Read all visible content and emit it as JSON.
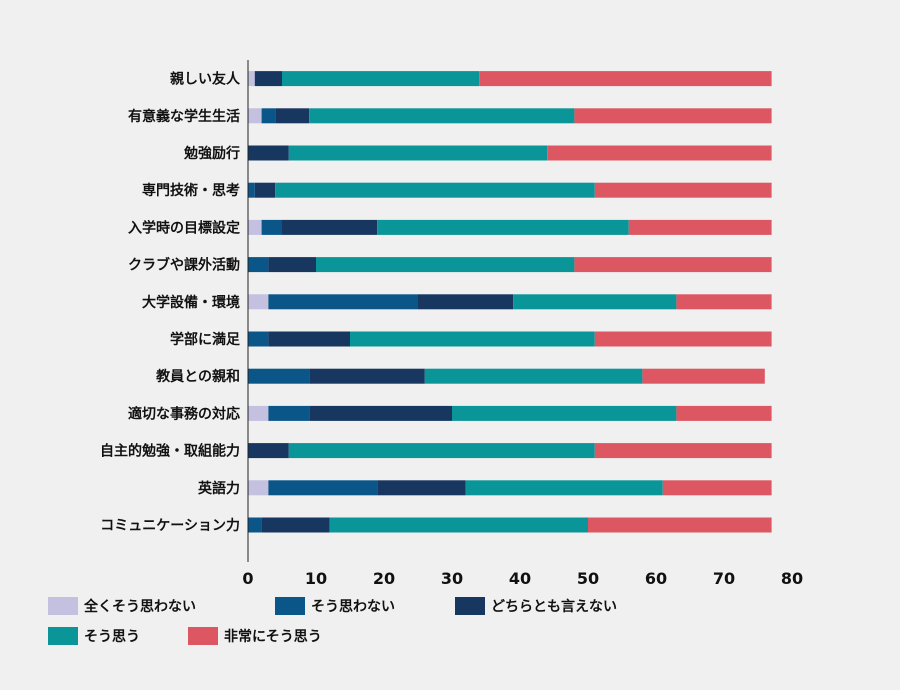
{
  "chart_data": {
    "type": "bar",
    "orientation": "horizontal",
    "stacked": true,
    "title": "",
    "xlabel": "",
    "ylabel": "",
    "xlim": [
      0,
      80
    ],
    "xticks": [
      0,
      10,
      20,
      30,
      40,
      50,
      60,
      70,
      80
    ],
    "grid": false,
    "legend_position": "bottom",
    "categories": [
      "親しい友人",
      "有意義な学生生活",
      "勉強励行",
      "専門技術・思考",
      "入学時の目標設定",
      "クラブや課外活動",
      "大学設備・環境",
      "学部に満足",
      "教員との親和",
      "適切な事務の対応",
      "自主的勉強・取組能力",
      "英語力",
      "コミュニケーション力"
    ],
    "series": [
      {
        "name": "全くそう思わない",
        "color": "#c3c0e0",
        "values": [
          1,
          2,
          0,
          0,
          2,
          0,
          3,
          0,
          0,
          3,
          0,
          3,
          0
        ]
      },
      {
        "name": "そう思わない",
        "color": "#0b5689",
        "values": [
          0,
          2,
          0,
          1,
          3,
          3,
          22,
          3,
          9,
          6,
          0,
          16,
          2
        ]
      },
      {
        "name": "どちらとも言えない",
        "color": "#173761",
        "values": [
          4,
          5,
          6,
          3,
          14,
          7,
          14,
          12,
          17,
          21,
          6,
          13,
          10
        ]
      },
      {
        "name": "そう思う",
        "color": "#0a9698",
        "values": [
          29,
          39,
          38,
          47,
          37,
          38,
          24,
          36,
          32,
          33,
          45,
          29,
          38
        ]
      },
      {
        "name": "非常にそう思う",
        "color": "#dc5762",
        "values": [
          43,
          29,
          33,
          26,
          21,
          29,
          14,
          26,
          18,
          14,
          26,
          16,
          27
        ]
      }
    ]
  }
}
